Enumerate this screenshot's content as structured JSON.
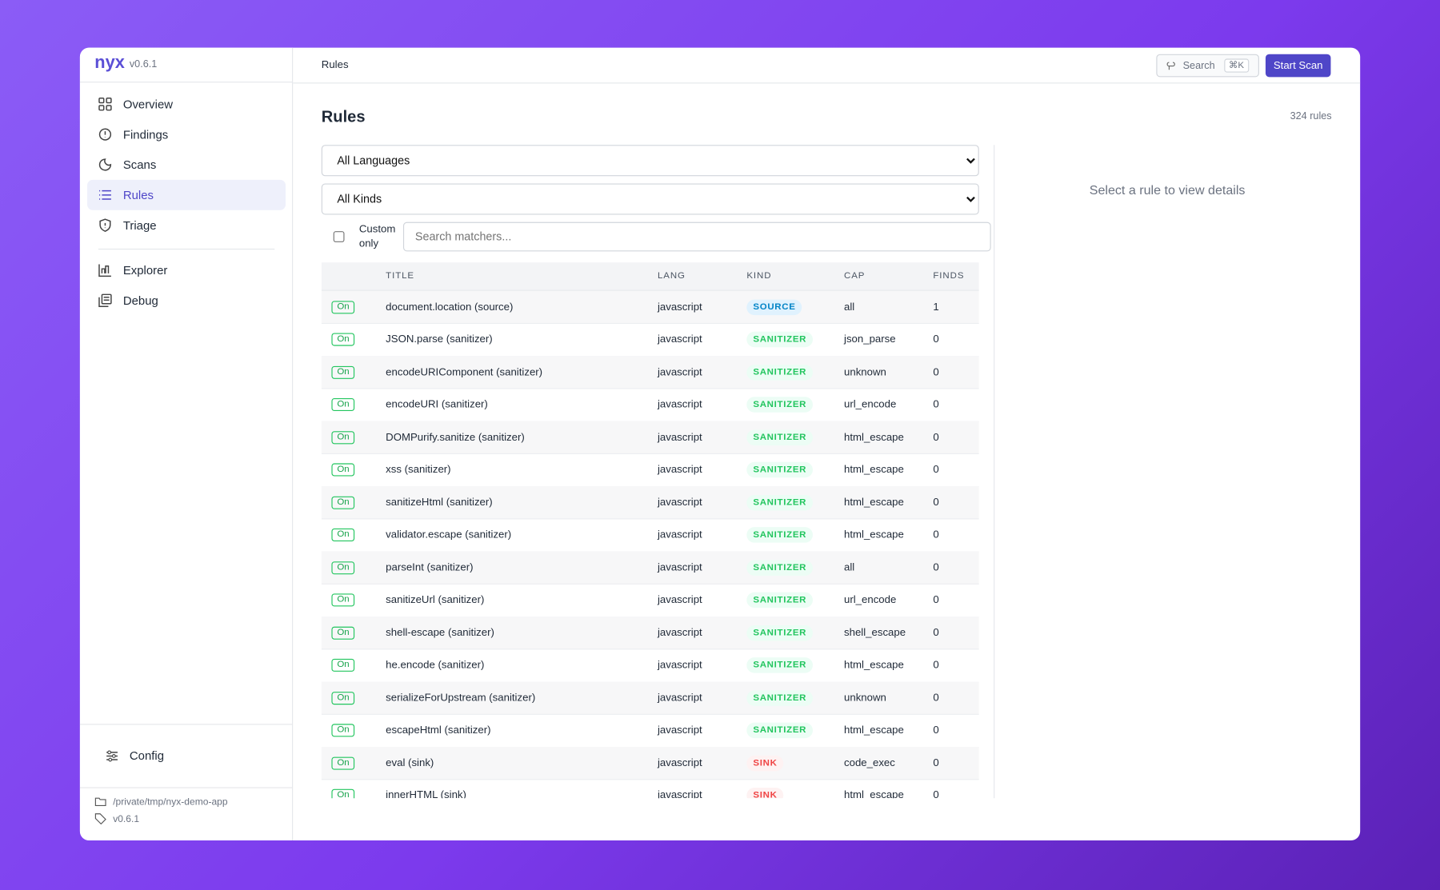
{
  "sidebar": {
    "brand": "nyx",
    "version": "v0.6.1",
    "nav": [
      "Overview",
      "Findings",
      "Scans",
      "Rules",
      "Triage",
      "Explorer",
      "Debug"
    ],
    "active": "Rules",
    "config": "Config",
    "project_path": "/private/tmp/nyx-demo-app",
    "footer_version": "v0.6.1"
  },
  "topbar": {
    "breadcrumb": "Rules",
    "search": "Search",
    "shortcut": "⌘K",
    "button": "Start Scan"
  },
  "page": {
    "title": "Rules",
    "count": "324 rules",
    "language_filter": "All Languages",
    "kind_filter": "All Kinds",
    "custom_only": "Custom only",
    "search_placeholder": "Search matchers...",
    "detail_placeholder": "Select a rule to view details"
  },
  "table": {
    "headers": [
      "",
      "TITLE",
      "LANG",
      "KIND",
      "CAP",
      "FINDS"
    ],
    "rows": [
      [
        "On",
        "document.location (source)",
        "javascript",
        "SOURCE",
        "all",
        "1"
      ],
      [
        "On",
        "JSON.parse (sanitizer)",
        "javascript",
        "SANITIZER",
        "json_parse",
        "0"
      ],
      [
        "On",
        "encodeURIComponent (sanitizer)",
        "javascript",
        "SANITIZER",
        "unknown",
        "0"
      ],
      [
        "On",
        "encodeURI (sanitizer)",
        "javascript",
        "SANITIZER",
        "url_encode",
        "0"
      ],
      [
        "On",
        "DOMPurify.sanitize (sanitizer)",
        "javascript",
        "SANITIZER",
        "html_escape",
        "0"
      ],
      [
        "On",
        "xss (sanitizer)",
        "javascript",
        "SANITIZER",
        "html_escape",
        "0"
      ],
      [
        "On",
        "sanitizeHtml (sanitizer)",
        "javascript",
        "SANITIZER",
        "html_escape",
        "0"
      ],
      [
        "On",
        "validator.escape (sanitizer)",
        "javascript",
        "SANITIZER",
        "html_escape",
        "0"
      ],
      [
        "On",
        "parseInt (sanitizer)",
        "javascript",
        "SANITIZER",
        "all",
        "0"
      ],
      [
        "On",
        "sanitizeUrl (sanitizer)",
        "javascript",
        "SANITIZER",
        "url_encode",
        "0"
      ],
      [
        "On",
        "shell-escape (sanitizer)",
        "javascript",
        "SANITIZER",
        "shell_escape",
        "0"
      ],
      [
        "On",
        "he.encode (sanitizer)",
        "javascript",
        "SANITIZER",
        "html_escape",
        "0"
      ],
      [
        "On",
        "serializeForUpstream (sanitizer)",
        "javascript",
        "SANITIZER",
        "unknown",
        "0"
      ],
      [
        "On",
        "escapeHtml (sanitizer)",
        "javascript",
        "SANITIZER",
        "html_escape",
        "0"
      ],
      [
        "On",
        "eval (sink)",
        "javascript",
        "SINK",
        "code_exec",
        "0"
      ],
      [
        "On",
        "innerHTML (sink)",
        "javascript",
        "SINK",
        "html_escape",
        "0"
      ]
    ]
  }
}
